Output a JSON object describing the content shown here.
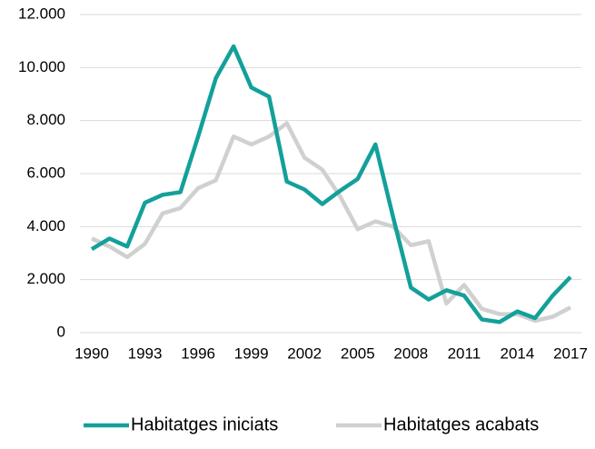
{
  "chart_data": {
    "type": "line",
    "x": [
      1990,
      1991,
      1992,
      1993,
      1994,
      1995,
      1996,
      1997,
      1998,
      1999,
      2000,
      2001,
      2002,
      2003,
      2004,
      2005,
      2006,
      2007,
      2008,
      2009,
      2010,
      2011,
      2012,
      2013,
      2014,
      2015,
      2016,
      2017
    ],
    "series": [
      {
        "name": "Habitatges iniciats",
        "color": "#13a09a",
        "values": [
          3150,
          3550,
          3250,
          4900,
          5200,
          5300,
          7400,
          9600,
          10800,
          9250,
          8900,
          5700,
          5400,
          4850,
          5350,
          5800,
          7100,
          4350,
          1700,
          1250,
          1600,
          1400,
          500,
          400,
          800,
          550,
          1400,
          2100
        ]
      },
      {
        "name": "Habitatges acabats",
        "color": "#d0d0d0",
        "values": [
          3550,
          3250,
          2850,
          3350,
          4500,
          4700,
          5450,
          5750,
          7400,
          7100,
          7400,
          7900,
          6600,
          6150,
          5150,
          3900,
          4200,
          4000,
          3300,
          3450,
          1100,
          1800,
          900,
          700,
          700,
          450,
          600,
          950
        ]
      }
    ],
    "xlim": [
      1990,
      2017
    ],
    "xticks": [
      1990,
      1993,
      1996,
      1999,
      2002,
      2005,
      2008,
      2011,
      2014,
      2017
    ],
    "ylim": [
      0,
      12000
    ],
    "yticks": [
      0,
      {
        "value": 2000,
        "label": "2.000"
      },
      {
        "value": 4000,
        "label": "4.000"
      },
      {
        "value": 6000,
        "label": "6.000"
      },
      {
        "value": 8000,
        "label": "8.000"
      },
      {
        "value": 10000,
        "label": "10.000"
      },
      {
        "value": 12000,
        "label": "12.000"
      }
    ],
    "grid": true,
    "legend": "bottom"
  }
}
